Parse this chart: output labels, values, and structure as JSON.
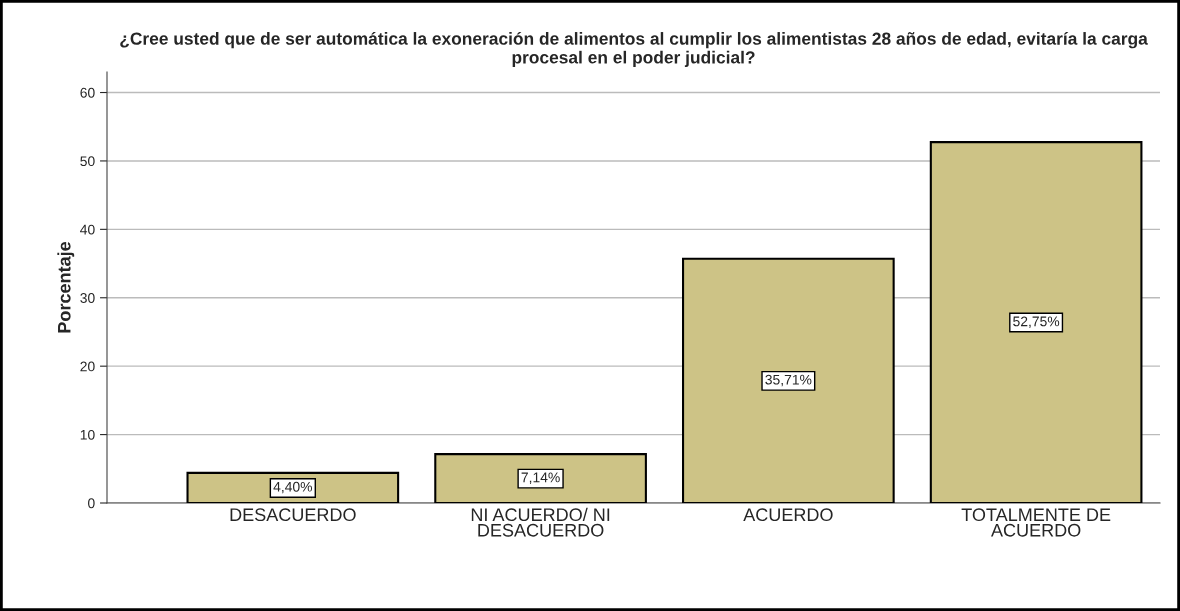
{
  "chart_data": {
    "type": "bar",
    "title": "¿Cree usted que de ser automática la exoneración de alimentos al cumplir los alimentistas 28 años de edad, evitaría la carga procesal en el poder judicial?",
    "ylabel": "Porcentaje",
    "categories": [
      "DESACUERDO",
      "NI ACUERDO/ NI DESACUERDO",
      "ACUERDO",
      "TOTALMENTE DE ACUERDO"
    ],
    "values": [
      4.4,
      7.14,
      35.71,
      52.75
    ],
    "value_labels": [
      "4,40%",
      "7,14%",
      "35,71%",
      "52,75%"
    ],
    "color": "#cdc386",
    "ylim": [
      0,
      63
    ],
    "yticks": [
      0,
      10,
      20,
      30,
      40,
      50,
      60
    ],
    "grid": "y"
  }
}
